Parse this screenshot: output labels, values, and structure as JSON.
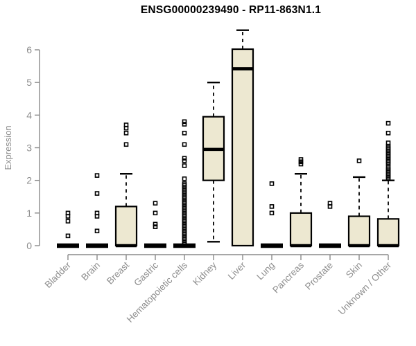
{
  "header": {
    "title": "ENSG00000239490 - RP11-863N1.1"
  },
  "chart_data": {
    "type": "boxplot",
    "title": "ENSG00000239490 - RP11-863N1.1",
    "xlabel": "",
    "ylabel": "Expression",
    "ylim": [
      0,
      6.6
    ],
    "yticks": [
      0,
      1,
      2,
      3,
      4,
      5,
      6
    ],
    "grid": false,
    "legend": "none",
    "colors": {
      "box_fill": "#ede8d1",
      "box_stroke": "#000000",
      "median": "#000000",
      "whisker": "#000000",
      "outlier": "#000000",
      "axis_line": "#8a8a8a",
      "axis_text": "#8d8d8d",
      "title_text": "#000000",
      "background": "#ffffff"
    },
    "categories": [
      "Bladder",
      "Brain",
      "Breast",
      "Gastric",
      "Hematopoietic cells",
      "Kidney",
      "Liver",
      "Lung",
      "Pancreas",
      "Prostate",
      "Skin",
      "Unknown / Other"
    ],
    "series": [
      {
        "name": "Bladder",
        "min": 0,
        "q1": 0,
        "median": 0,
        "q3": 0,
        "max": 0,
        "outliers": [
          0.3,
          0.75,
          0.9,
          1.0
        ]
      },
      {
        "name": "Brain",
        "min": 0,
        "q1": 0,
        "median": 0,
        "q3": 0,
        "max": 0,
        "outliers": [
          0.45,
          0.9,
          1.0,
          1.6,
          2.15
        ]
      },
      {
        "name": "Breast",
        "min": 0,
        "q1": 0,
        "median": 0,
        "q3": 1.2,
        "max": 2.2,
        "outliers": [
          3.1,
          3.45,
          3.6,
          3.7
        ]
      },
      {
        "name": "Gastric",
        "min": 0,
        "q1": 0,
        "median": 0,
        "q3": 0,
        "max": 0,
        "outliers": [
          0.58,
          0.66,
          1.0,
          1.3
        ]
      },
      {
        "name": "Hematopoietic cells",
        "min": 0,
        "q1": 0,
        "median": 0,
        "q3": 0,
        "max": 0,
        "outliers": [
          0.05,
          0.1,
          0.15,
          0.2,
          0.25,
          0.3,
          0.35,
          0.4,
          0.45,
          0.5,
          0.55,
          0.6,
          0.65,
          0.7,
          0.75,
          0.8,
          0.85,
          0.9,
          0.95,
          1.0,
          1.05,
          1.1,
          1.15,
          1.2,
          1.25,
          1.3,
          1.35,
          1.4,
          1.45,
          1.5,
          1.55,
          1.6,
          1.65,
          1.7,
          1.75,
          1.8,
          1.85,
          1.9,
          2.05,
          2.45,
          2.6,
          2.68,
          3.1,
          3.45,
          3.72,
          3.8
        ]
      },
      {
        "name": "Kidney",
        "min": 0.12,
        "q1": 2.0,
        "median": 2.95,
        "q3": 3.95,
        "max": 5.0,
        "outliers": []
      },
      {
        "name": "Liver",
        "min": 0,
        "q1": 0,
        "median": 5.42,
        "q3": 6.02,
        "max": 6.6,
        "outliers": []
      },
      {
        "name": "Lung",
        "min": 0,
        "q1": 0,
        "median": 0,
        "q3": 0,
        "max": 0,
        "outliers": [
          1.0,
          1.2,
          1.9
        ]
      },
      {
        "name": "Pancreas",
        "min": 0,
        "q1": 0,
        "median": 0,
        "q3": 1.0,
        "max": 2.2,
        "outliers": [
          2.5,
          2.57,
          2.64
        ]
      },
      {
        "name": "Prostate",
        "min": 0,
        "q1": 0,
        "median": 0,
        "q3": 0,
        "max": 0,
        "outliers": [
          1.2,
          1.3
        ]
      },
      {
        "name": "Skin",
        "min": 0,
        "q1": 0,
        "median": 0,
        "q3": 0.9,
        "max": 2.1,
        "outliers": [
          2.6
        ]
      },
      {
        "name": "Unknown / Other",
        "min": 0,
        "q1": 0,
        "median": 0,
        "q3": 0.82,
        "max": 2.0,
        "outliers": [
          2.05,
          2.1,
          2.15,
          2.2,
          2.25,
          2.3,
          2.35,
          2.4,
          2.5,
          2.55,
          2.6,
          2.65,
          2.7,
          2.75,
          2.8,
          2.85,
          2.9,
          2.95,
          3.0,
          3.05,
          3.15,
          3.45,
          3.75
        ]
      }
    ]
  }
}
